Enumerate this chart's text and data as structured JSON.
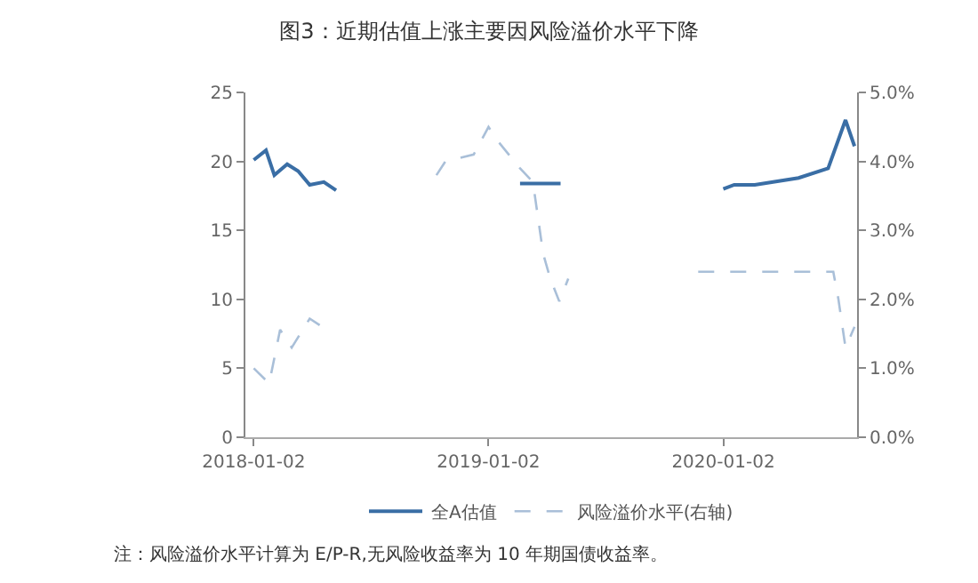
{
  "chart_data": {
    "type": "line",
    "title": "图3：近期估值上涨主要因风险溢价水平下降",
    "annotations": [
      "注：风险溢价水平计算为 E/P-R,无风险收益率为 10 年期国债收益率。"
    ],
    "xlim": [
      "2017-12-20",
      "2020-07-28"
    ],
    "xticks": [
      "2018-01-02",
      "2019-01-02",
      "2020-01-02"
    ],
    "ylim": [
      0,
      25
    ],
    "yticks": [
      0,
      5,
      10,
      15,
      20,
      25
    ],
    "y2lim": [
      0,
      5
    ],
    "y2ticks": [
      {
        "value": 0,
        "label": "0.0%"
      },
      {
        "value": 1,
        "label": "1.0%"
      },
      {
        "value": 2,
        "label": "2.0%"
      },
      {
        "value": 3,
        "label": "3.0%"
      },
      {
        "value": 4,
        "label": "4.0%"
      },
      {
        "value": 5,
        "label": "5.0%"
      }
    ],
    "grid": false,
    "legend": "bottom",
    "marker": "none",
    "series": [
      {
        "name": "全A估值",
        "color": "#3a6ea5",
        "line_style": "solid",
        "x": [
          "2018-01-02",
          "2018-01-21",
          "2018-02-03",
          "2018-02-23",
          "2018-03-12",
          "2018-03-30",
          "2018-04-21",
          "2018-05-10",
          "2018-08-01",
          "2019-02-20",
          "2019-03-19",
          "2019-04-24",
          "2019-09-01",
          "2020-01-02",
          "2020-01-19",
          "2020-02-20",
          "2020-04-28",
          "2020-06-13",
          "2020-07-10",
          "2020-07-24"
        ],
        "values": [
          20.1,
          20.8,
          19,
          19.8,
          19.3,
          18.3,
          18.5,
          17.9,
          null,
          18.4,
          18.4,
          18.4,
          null,
          18,
          18.3,
          18.3,
          18.8,
          19.5,
          23,
          21.1
        ]
      },
      {
        "name": "风险溢价水平(右轴)",
        "color": "#a9bfd8",
        "line_style": "dashed",
        "axis": "y2",
        "x": [
          "2018-01-02",
          "2018-01-26",
          "2018-02-12",
          "2018-03-02",
          "2018-03-30",
          "2018-04-25",
          "2018-07-01",
          "2018-10-13",
          "2018-10-27",
          "2018-12-10",
          "2019-01-02",
          "2019-01-16",
          "2019-02-20",
          "2019-03-12",
          "2019-03-28",
          "2019-04-08",
          "2019-04-22",
          "2019-05-06",
          "2019-08-01",
          "2019-11-24",
          "2020-01-02",
          "2020-01-29",
          "2020-06-21",
          "2020-06-29",
          "2020-07-10",
          "2020-07-24"
        ],
        "values": [
          1.0,
          0.78,
          1.56,
          1.3,
          1.72,
          1.56,
          null,
          3.8,
          4.0,
          4.1,
          4.5,
          4.3,
          3.9,
          3.7,
          2.66,
          2.3,
          1.97,
          2.3,
          null,
          2.4,
          2.4,
          2.4,
          2.4,
          2.0,
          1.3,
          1.6
        ]
      }
    ]
  }
}
